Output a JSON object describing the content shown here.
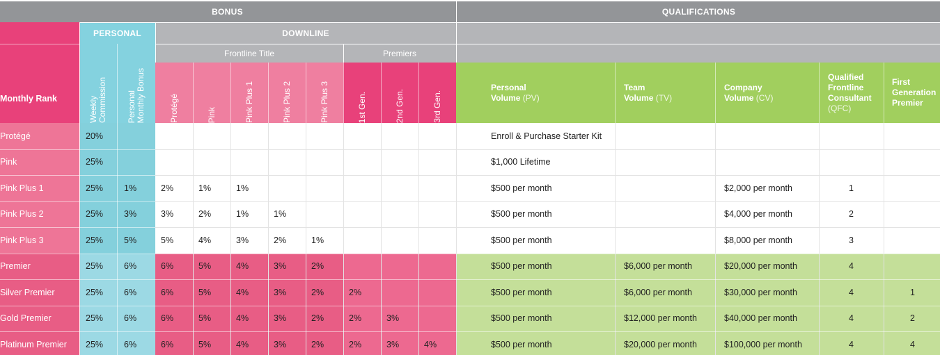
{
  "headers": {
    "bonus": "BONUS",
    "qualifications": "QUALIFICATIONS",
    "personal": "PERSONAL",
    "downline": "DOWNLINE",
    "frontline_title": "Frontline Title",
    "premiers": "Premiers",
    "monthly_rank": "Monthly Rank",
    "weekly_commission": [
      "Weekly",
      "Commission"
    ],
    "personal_monthly_bonus": [
      "Personal",
      "Monthly Bonus"
    ],
    "frontline_cols": [
      "Protégé",
      "Pink",
      "Pink Plus 1",
      "Pink Plus 2",
      "Pink Plus 3"
    ],
    "premier_cols": [
      "1st Gen.",
      "2nd Gen.",
      "3rd Gen."
    ],
    "pv": {
      "line1": "Personal",
      "line2a": "Volume ",
      "line2b": "(PV)"
    },
    "tv": {
      "line1": "Team",
      "line2a": "Volume ",
      "line2b": "(TV)"
    },
    "cv": {
      "line1": "Company",
      "line2a": "Volume ",
      "line2b": "(CV)"
    },
    "qfc": {
      "lines": [
        "Qualified",
        "Frontline",
        "Consultant"
      ],
      "abbr": "(QFC)"
    },
    "fgp": {
      "lines": [
        "First",
        "Generation",
        "Premier"
      ]
    }
  },
  "rows": [
    {
      "rank": "Protégé",
      "weekly": "20%",
      "pmb": "",
      "frontline": [
        "",
        "",
        "",
        "",
        ""
      ],
      "premiers": [
        "",
        "",
        ""
      ],
      "pv": "Enroll & Purchase Starter Kit",
      "tv": "",
      "cv": "",
      "qfc": "",
      "fgp": ""
    },
    {
      "rank": "Pink",
      "weekly": "25%",
      "pmb": "",
      "frontline": [
        "",
        "",
        "",
        "",
        ""
      ],
      "premiers": [
        "",
        "",
        ""
      ],
      "pv": "$1,000 Lifetime",
      "tv": "",
      "cv": "",
      "qfc": "",
      "fgp": ""
    },
    {
      "rank": "Pink Plus 1",
      "weekly": "25%",
      "pmb": "1%",
      "frontline": [
        "2%",
        "1%",
        "1%",
        "",
        ""
      ],
      "premiers": [
        "",
        "",
        ""
      ],
      "pv": "$500 per month",
      "tv": "",
      "cv": "$2,000 per month",
      "qfc": "1",
      "fgp": ""
    },
    {
      "rank": "Pink Plus 2",
      "weekly": "25%",
      "pmb": "3%",
      "frontline": [
        "3%",
        "2%",
        "1%",
        "1%",
        ""
      ],
      "premiers": [
        "",
        "",
        ""
      ],
      "pv": "$500 per month",
      "tv": "",
      "cv": "$4,000 per month",
      "qfc": "2",
      "fgp": ""
    },
    {
      "rank": "Pink Plus 3",
      "weekly": "25%",
      "pmb": "5%",
      "frontline": [
        "5%",
        "4%",
        "3%",
        "2%",
        "1%"
      ],
      "premiers": [
        "",
        "",
        ""
      ],
      "pv": "$500 per month",
      "tv": "",
      "cv": "$8,000 per month",
      "qfc": "3",
      "fgp": ""
    },
    {
      "rank": "Premier",
      "weekly": "25%",
      "pmb": "6%",
      "frontline": [
        "6%",
        "5%",
        "4%",
        "3%",
        "2%"
      ],
      "premiers": [
        "",
        "",
        ""
      ],
      "pv": "$500 per month",
      "tv": "$6,000 per month",
      "cv": "$20,000 per month",
      "qfc": "4",
      "fgp": ""
    },
    {
      "rank": "Silver Premier",
      "weekly": "25%",
      "pmb": "6%",
      "frontline": [
        "6%",
        "5%",
        "4%",
        "3%",
        "2%"
      ],
      "premiers": [
        "2%",
        "",
        ""
      ],
      "pv": "$500 per month",
      "tv": "$6,000 per month",
      "cv": "$30,000 per month",
      "qfc": "4",
      "fgp": "1"
    },
    {
      "rank": "Gold Premier",
      "weekly": "25%",
      "pmb": "6%",
      "frontline": [
        "6%",
        "5%",
        "4%",
        "3%",
        "2%"
      ],
      "premiers": [
        "2%",
        "3%",
        ""
      ],
      "pv": "$500 per month",
      "tv": "$12,000 per month",
      "cv": "$40,000 per month",
      "qfc": "4",
      "fgp": "2"
    },
    {
      "rank": "Platinum Premier",
      "weekly": "25%",
      "pmb": "6%",
      "frontline": [
        "6%",
        "5%",
        "4%",
        "3%",
        "2%"
      ],
      "premiers": [
        "2%",
        "3%",
        "4%"
      ],
      "pv": "$500 per month",
      "tv": "$20,000 per month",
      "cv": "$100,000 per month",
      "qfc": "4",
      "fgp": "4"
    }
  ],
  "colors": {
    "gray_dark": "#939598",
    "gray_light": "#b4b5b8",
    "rank_header": "#e8417a",
    "rank_light": "#ee7597",
    "rank_premier": "#e85d85",
    "personal_header": "#84d2df",
    "personal_light": "#84d0dc",
    "personal_premier": "#9cd9e4",
    "frontline_header": "#ef7fa0",
    "premier_header": "#e8417a",
    "premier_body": "#ed6990",
    "qual_header": "#a1cf5e",
    "qual_premier": "#c4df99"
  }
}
